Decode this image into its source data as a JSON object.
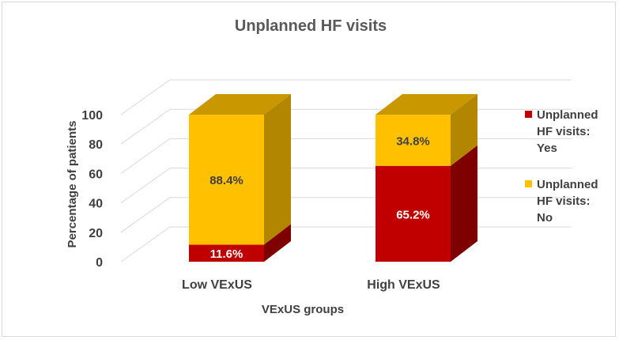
{
  "chart_data": {
    "type": "bar",
    "stacked": true,
    "style": "3d-column",
    "title": "Unplanned HF visits",
    "xlabel": "VExUS groups",
    "ylabel": "Percentage of patients",
    "categories": [
      "Low VExUS",
      "High VExUS"
    ],
    "ylim": [
      0,
      100
    ],
    "yticks": [
      0,
      20,
      40,
      60,
      80,
      100
    ],
    "series": [
      {
        "name": "Unplanned HF visits: Yes",
        "values": [
          11.6,
          65.2
        ],
        "labels": [
          "11.6%",
          "65.2%"
        ],
        "color": "#c00000",
        "side_color": "#7f0000",
        "top_color": "#990000",
        "label_class": "val-light"
      },
      {
        "name": "Unplanned HF visits: No",
        "values": [
          88.4,
          34.8
        ],
        "labels": [
          "88.4%",
          "34.8%"
        ],
        "color": "#ffc000",
        "side_color": "#b38600",
        "top_color": "#c99700",
        "label_class": "val-dark"
      }
    ],
    "legend_position": "right",
    "legend_lines": [
      [
        "Unplanned",
        "HF visits:",
        "Yes"
      ],
      [
        "Unplanned",
        "HF visits:",
        "No"
      ]
    ],
    "grid": true
  }
}
